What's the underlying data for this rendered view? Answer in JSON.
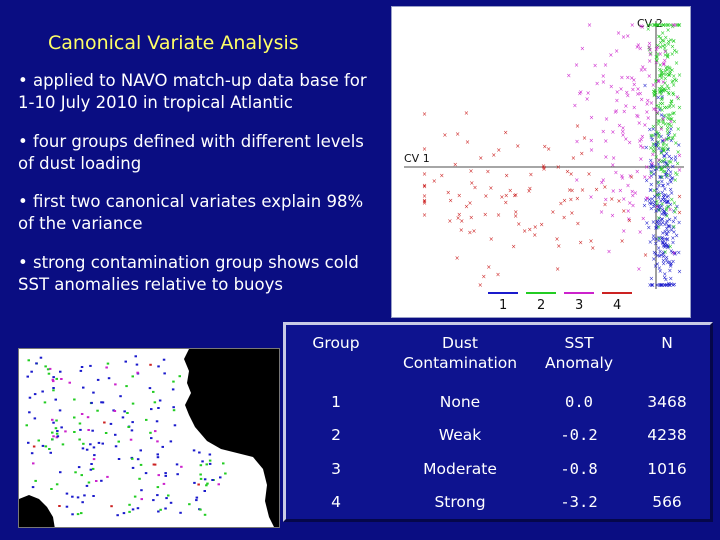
{
  "title": "Canonical Variate Analysis",
  "bullets": [
    "• applied to NAVO match-up data base for 1-10 July 2010 in tropical Atlantic",
    "• four groups defined with different levels of dust loading",
    "• first two canonical variates explain 98% of the variance",
    "• strong contamination group shows cold SST anomalies relative to buoys"
  ],
  "scatter": {
    "axis_label_cv1": "CV 1",
    "axis_label_cv2": "CV 2",
    "legend": [
      {
        "label": "1",
        "color": "#1a1acc"
      },
      {
        "label": "2",
        "color": "#22cc22"
      },
      {
        "label": "3",
        "color": "#cc22cc"
      },
      {
        "label": "4",
        "color": "#cc2222"
      }
    ]
  },
  "table": {
    "headers": [
      "Group",
      "Dust Contamination",
      "SST Anomaly",
      "N"
    ],
    "rows": [
      {
        "group": "1",
        "dust": "None",
        "sst": "0.0",
        "n": "3468"
      },
      {
        "group": "2",
        "dust": "Weak",
        "sst": "-0.2",
        "n": "4238"
      },
      {
        "group": "3",
        "dust": "Moderate",
        "sst": "-0.8",
        "n": "1016"
      },
      {
        "group": "4",
        "dust": "Strong",
        "sst": "-3.2",
        "n": "566"
      }
    ]
  }
}
